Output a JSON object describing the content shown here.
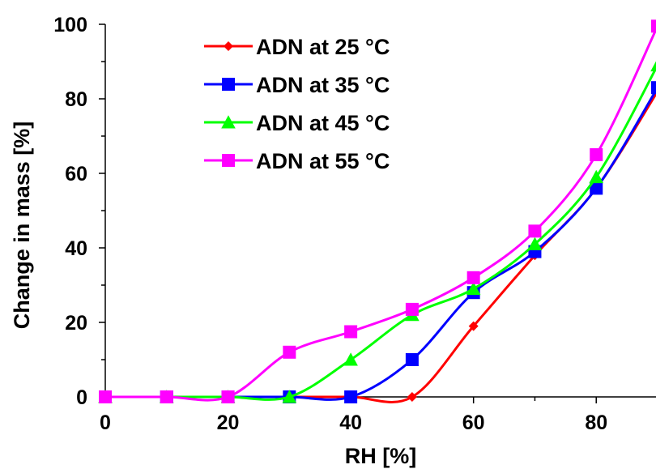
{
  "chart_data": {
    "type": "line",
    "xlabel": "RH [%]",
    "ylabel": "Change in mass [%]",
    "xlim": [
      0,
      90
    ],
    "ylim": [
      0,
      100
    ],
    "xticks": [
      0,
      20,
      40,
      60,
      80
    ],
    "yticks": [
      0,
      20,
      40,
      60,
      80,
      100
    ],
    "legend_position": "top-left",
    "series": [
      {
        "name": "ADN at 25 °C",
        "color": "#ff0000",
        "marker": "diamond",
        "x": [
          0,
          10,
          20,
          30,
          40,
          50,
          60,
          70,
          80,
          90
        ],
        "y": [
          0,
          0,
          0,
          0,
          0,
          0,
          19,
          38,
          56,
          82
        ]
      },
      {
        "name": "ADN at 35 °C",
        "color": "#0000ff",
        "marker": "square",
        "x": [
          0,
          10,
          20,
          30,
          40,
          50,
          60,
          70,
          80,
          90
        ],
        "y": [
          0,
          0,
          0,
          0,
          0,
          10,
          28,
          39,
          56,
          83
        ]
      },
      {
        "name": "ADN at 45 °C",
        "color": "#00ff00",
        "marker": "triangle",
        "x": [
          0,
          10,
          20,
          30,
          40,
          50,
          60,
          70,
          80,
          90
        ],
        "y": [
          0,
          0,
          0,
          0,
          10,
          22,
          29,
          41,
          59,
          89
        ]
      },
      {
        "name": "ADN at 55 °C",
        "color": "#ff00ff",
        "marker": "square",
        "x": [
          0,
          10,
          20,
          30,
          40,
          50,
          60,
          70,
          80,
          90
        ],
        "y": [
          0,
          0,
          0,
          12,
          17.5,
          23.5,
          32,
          44.5,
          65,
          99.5
        ]
      }
    ]
  }
}
